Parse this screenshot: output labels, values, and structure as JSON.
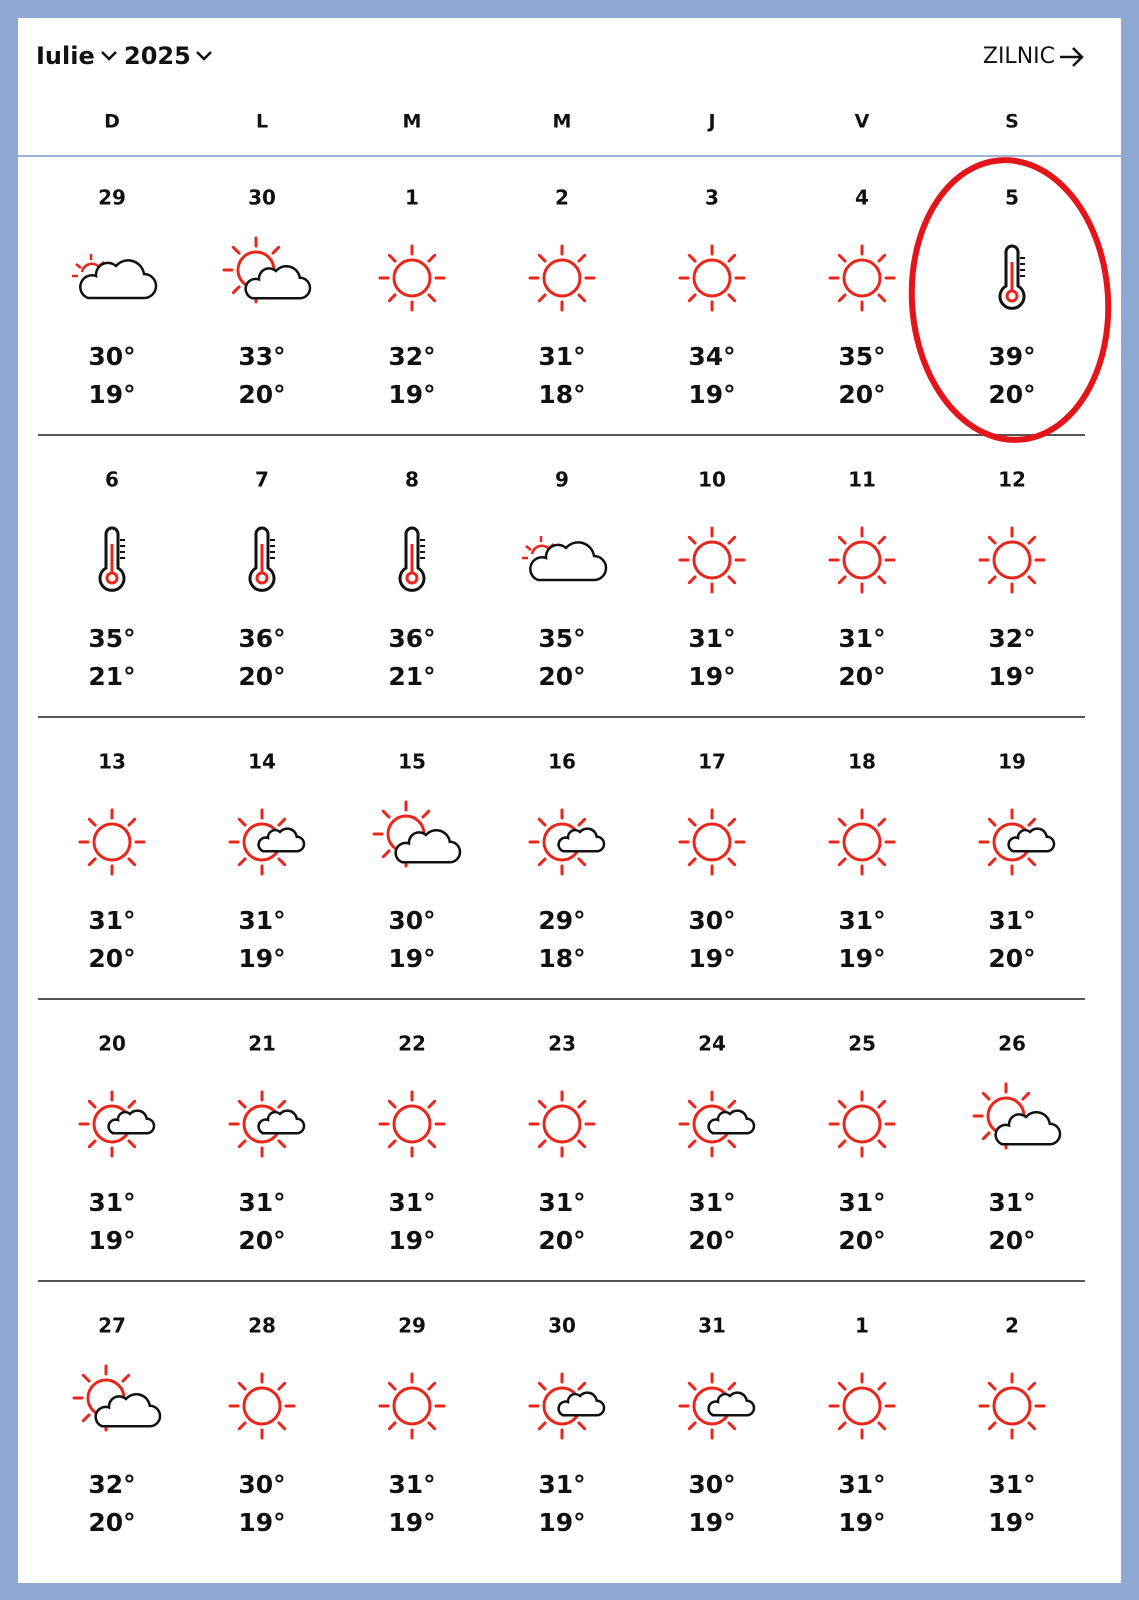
{
  "header": {
    "month": "Iulie",
    "year": "2025",
    "link": "ZILNIC"
  },
  "weekdays": [
    "D",
    "L",
    "M",
    "M",
    "J",
    "V",
    "S"
  ],
  "weeks": [
    {
      "days": [
        {
          "day": "29",
          "icon": "cloudy",
          "high": "30°",
          "low": "19°"
        },
        {
          "day": "30",
          "icon": "partly",
          "high": "33°",
          "low": "20°"
        },
        {
          "day": "1",
          "icon": "sun",
          "high": "32°",
          "low": "19°"
        },
        {
          "day": "2",
          "icon": "sun",
          "high": "31°",
          "low": "18°"
        },
        {
          "day": "3",
          "icon": "sun",
          "high": "34°",
          "low": "19°"
        },
        {
          "day": "4",
          "icon": "sun",
          "high": "35°",
          "low": "20°"
        },
        {
          "day": "5",
          "icon": "hot",
          "high": "39°",
          "low": "20°"
        }
      ]
    },
    {
      "days": [
        {
          "day": "6",
          "icon": "hot",
          "high": "35°",
          "low": "21°"
        },
        {
          "day": "7",
          "icon": "hot",
          "high": "36°",
          "low": "20°"
        },
        {
          "day": "8",
          "icon": "hot",
          "high": "36°",
          "low": "21°"
        },
        {
          "day": "9",
          "icon": "cloudy",
          "high": "35°",
          "low": "20°"
        },
        {
          "day": "10",
          "icon": "sun",
          "high": "31°",
          "low": "19°"
        },
        {
          "day": "11",
          "icon": "sun",
          "high": "31°",
          "low": "20°"
        },
        {
          "day": "12",
          "icon": "sun",
          "high": "32°",
          "low": "19°"
        }
      ]
    },
    {
      "days": [
        {
          "day": "13",
          "icon": "sun",
          "high": "31°",
          "low": "20°"
        },
        {
          "day": "14",
          "icon": "sun-cloud",
          "high": "31°",
          "low": "19°"
        },
        {
          "day": "15",
          "icon": "partly",
          "high": "30°",
          "low": "19°"
        },
        {
          "day": "16",
          "icon": "sun-cloud",
          "high": "29°",
          "low": "18°"
        },
        {
          "day": "17",
          "icon": "sun",
          "high": "30°",
          "low": "19°"
        },
        {
          "day": "18",
          "icon": "sun",
          "high": "31°",
          "low": "19°"
        },
        {
          "day": "19",
          "icon": "sun-cloud",
          "high": "31°",
          "low": "20°"
        }
      ]
    },
    {
      "days": [
        {
          "day": "20",
          "icon": "sun-cloud",
          "high": "31°",
          "low": "19°"
        },
        {
          "day": "21",
          "icon": "sun-cloud",
          "high": "31°",
          "low": "20°"
        },
        {
          "day": "22",
          "icon": "sun",
          "high": "31°",
          "low": "19°"
        },
        {
          "day": "23",
          "icon": "sun",
          "high": "31°",
          "low": "20°"
        },
        {
          "day": "24",
          "icon": "sun-cloud",
          "high": "31°",
          "low": "20°"
        },
        {
          "day": "25",
          "icon": "sun",
          "high": "31°",
          "low": "20°"
        },
        {
          "day": "26",
          "icon": "partly",
          "high": "31°",
          "low": "20°"
        }
      ]
    },
    {
      "days": [
        {
          "day": "27",
          "icon": "partly",
          "high": "32°",
          "low": "20°"
        },
        {
          "day": "28",
          "icon": "sun",
          "high": "30°",
          "low": "19°"
        },
        {
          "day": "29",
          "icon": "sun",
          "high": "31°",
          "low": "19°"
        },
        {
          "day": "30",
          "icon": "sun-cloud",
          "high": "31°",
          "low": "19°"
        },
        {
          "day": "31",
          "icon": "sun-cloud",
          "high": "30°",
          "low": "19°"
        },
        {
          "day": "1",
          "icon": "sun",
          "high": "31°",
          "low": "19°"
        },
        {
          "day": "2",
          "icon": "sun",
          "high": "31°",
          "low": "19°"
        }
      ]
    }
  ]
}
